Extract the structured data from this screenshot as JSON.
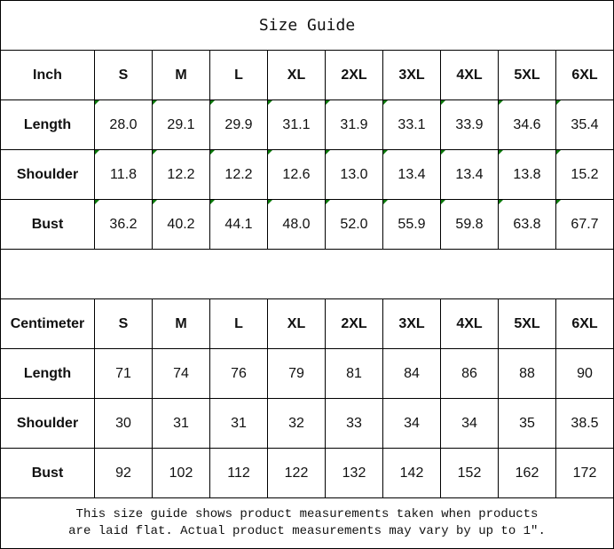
{
  "title": "Size Guide",
  "sizes": [
    "S",
    "M",
    "L",
    "XL",
    "2XL",
    "3XL",
    "4XL",
    "5XL",
    "6XL"
  ],
  "inch": {
    "unit_label": "Inch",
    "rows": [
      {
        "label": "Length",
        "values": [
          "28.0",
          "29.1",
          "29.9",
          "31.1",
          "31.9",
          "33.1",
          "33.9",
          "34.6",
          "35.4"
        ]
      },
      {
        "label": "Shoulder",
        "values": [
          "11.8",
          "12.2",
          "12.2",
          "12.6",
          "13.0",
          "13.4",
          "13.4",
          "13.8",
          "15.2"
        ]
      },
      {
        "label": "Bust",
        "values": [
          "36.2",
          "40.2",
          "44.1",
          "48.0",
          "52.0",
          "55.9",
          "59.8",
          "63.8",
          "67.7"
        ]
      }
    ]
  },
  "cm": {
    "unit_label": "Centimeter",
    "rows": [
      {
        "label": "Length",
        "values": [
          "71",
          "74",
          "76",
          "79",
          "81",
          "84",
          "86",
          "88",
          "90"
        ]
      },
      {
        "label": "Shoulder",
        "values": [
          "30",
          "31",
          "31",
          "32",
          "33",
          "34",
          "34",
          "35",
          "38.5"
        ]
      },
      {
        "label": "Bust",
        "values": [
          "92",
          "102",
          "112",
          "122",
          "132",
          "142",
          "152",
          "162",
          "172"
        ]
      }
    ]
  },
  "note_line1": "This size guide shows product measurements taken when products",
  "note_line2": "are laid flat. Actual product measurements may vary by up to 1″.",
  "colors": {
    "text_marker": "#0a7a0a"
  }
}
